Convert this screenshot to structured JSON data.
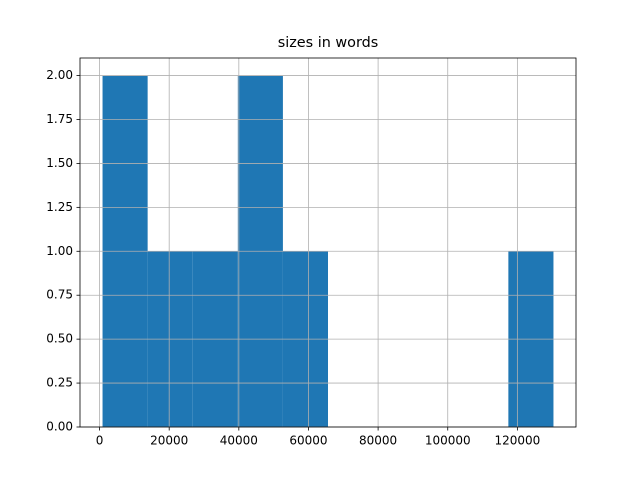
{
  "chart_data": {
    "type": "histogram",
    "title": "sizes in words",
    "bins": [
      860,
      13810,
      26760,
      39710,
      52660,
      65610,
      78560,
      91510,
      104460,
      117410,
      130360
    ],
    "counts": [
      2,
      1,
      1,
      2,
      1,
      0,
      0,
      0,
      0,
      1
    ],
    "color": "#1f77b4",
    "xlim": [
      -5615,
      136835
    ],
    "xticks": [
      0,
      20000,
      40000,
      60000,
      80000,
      100000,
      120000
    ],
    "ylim": [
      0,
      2.1
    ],
    "yticks": [
      {
        "value": 0,
        "label": "0.00"
      },
      {
        "value": 0.25,
        "label": "0.25"
      },
      {
        "value": 0.5,
        "label": "0.50"
      },
      {
        "value": 0.75,
        "label": "0.75"
      },
      {
        "value": 1,
        "label": "1.00"
      },
      {
        "value": 1.25,
        "label": "1.25"
      },
      {
        "value": 1.5,
        "label": "1.50"
      },
      {
        "value": 1.75,
        "label": "1.75"
      },
      {
        "value": 2,
        "label": "2.00"
      }
    ],
    "grid": true
  }
}
